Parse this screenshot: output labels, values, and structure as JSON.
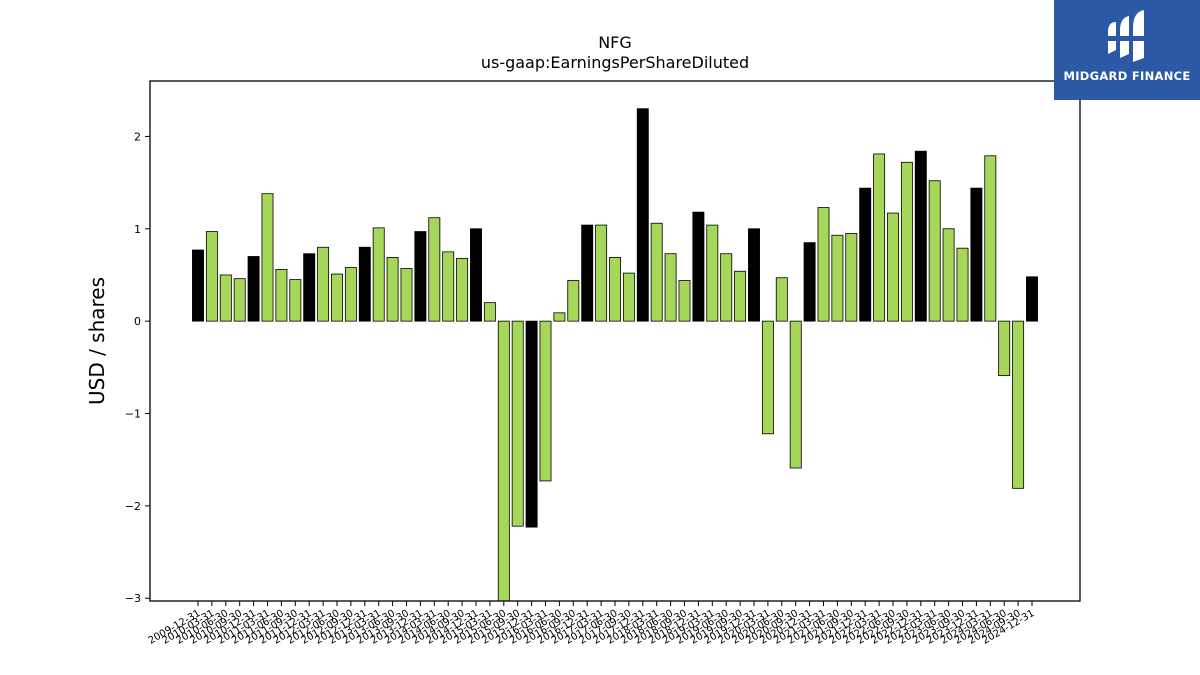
{
  "chart_data": {
    "type": "bar",
    "title": "NFG",
    "subtitle": "us-gaap:EarningsPerShareDiluted",
    "ylabel": "USD / shares",
    "xlabel": "",
    "ylim": [
      -3.03,
      2.6
    ],
    "yticks": [
      -3,
      -2,
      -1,
      0,
      1,
      2
    ],
    "grid": false,
    "colors": {
      "annual": "#000000",
      "quarterly": "#a6d65a",
      "edge": "#000000"
    },
    "categories": [
      "2009-12-31",
      "2010-03-31",
      "2010-06-30",
      "2010-09-30",
      "2010-12-31",
      "2011-03-31",
      "2011-06-30",
      "2011-09-30",
      "2011-12-31",
      "2012-03-31",
      "2012-06-30",
      "2012-09-30",
      "2012-12-31",
      "2013-03-31",
      "2013-06-30",
      "2013-09-30",
      "2013-12-31",
      "2014-03-31",
      "2014-06-30",
      "2014-09-30",
      "2014-12-31",
      "2015-03-31",
      "2015-06-30",
      "2015-09-30",
      "2015-12-31",
      "2016-03-31",
      "2016-06-30",
      "2016-09-30",
      "2016-12-31",
      "2017-03-31",
      "2017-06-30",
      "2017-09-30",
      "2017-12-31",
      "2018-03-31",
      "2018-06-30",
      "2018-09-30",
      "2018-12-31",
      "2019-03-31",
      "2019-06-30",
      "2019-09-30",
      "2019-12-31",
      "2020-03-31",
      "2020-06-30",
      "2020-09-30",
      "2020-12-31",
      "2021-03-31",
      "2021-06-30",
      "2021-09-30",
      "2021-12-31",
      "2022-03-31",
      "2022-06-30",
      "2022-09-30",
      "2022-12-31",
      "2023-03-31",
      "2023-06-30",
      "2023-09-30",
      "2023-12-31",
      "2024-03-31",
      "2024-06-30",
      "2024-09-30",
      "2024-12-31"
    ],
    "tick_labels": [
      "2009-12-31",
      "2010-03-31",
      "2010-06-30",
      "2010-09-30",
      "2010-12-31",
      "2011-03-31",
      "2011-06-30",
      "2011-09-30",
      "2011-12-31",
      "2012-03-31",
      "2012-06-30",
      "2012-09-30",
      "2012-12-31",
      "2013-03-31",
      "2013-06-30",
      "2013-09-30",
      "2013-12-31",
      "2014-03-31",
      "2014-06-30",
      "2014-09-30",
      "2014-12-31",
      "2015-03-31",
      "2015-06-30",
      "2015-09-30",
      "2015-12-31",
      "2016-03-31",
      "2016-06-30",
      "2016-09-30",
      "2016-12-31",
      "2017-03-31",
      "2017-06-30",
      "2017-09-30",
      "2017-12-31",
      "2018-03-31",
      "2018-06-30",
      "2018-09-30",
      "2018-12-31",
      "2019-03-31",
      "2019-06-30",
      "2019-09-30",
      "2019-12-31",
      "2020-03-31",
      "2020-06-30",
      "2020-09-30",
      "2020-12-31",
      "2021-03-31",
      "2021-06-30",
      "2021-09-30",
      "2021-12-31",
      "2022-03-31",
      "2022-06-30",
      "2022-09-30",
      "2022-12-31",
      "2023-03-31",
      "2023-06-30",
      "2023-09-30",
      "2023-12-31",
      "2024-03-31",
      "2024-06-30",
      "2024-09-30",
      "2024-12-31"
    ],
    "values": [
      0.77,
      0.97,
      0.5,
      0.46,
      0.7,
      1.38,
      0.56,
      0.45,
      0.73,
      0.8,
      0.51,
      0.58,
      0.8,
      1.01,
      0.69,
      0.57,
      0.97,
      1.12,
      0.75,
      0.68,
      1.0,
      0.2,
      -3.03,
      -2.22,
      -2.23,
      -1.73,
      0.09,
      0.44,
      1.04,
      1.04,
      0.69,
      0.52,
      2.3,
      1.06,
      0.73,
      0.44,
      1.18,
      1.04,
      0.73,
      0.54,
      1.0,
      -1.22,
      0.47,
      -1.59,
      0.85,
      1.23,
      0.93,
      0.95,
      1.44,
      1.81,
      1.17,
      1.72,
      1.84,
      1.52,
      1.0,
      0.79,
      1.44,
      1.79,
      -0.59,
      -1.81,
      0.48
    ],
    "bar_kind": [
      "annual",
      "quarterly",
      "quarterly",
      "quarterly",
      "annual",
      "quarterly",
      "quarterly",
      "quarterly",
      "annual",
      "quarterly",
      "quarterly",
      "quarterly",
      "annual",
      "quarterly",
      "quarterly",
      "quarterly",
      "annual",
      "quarterly",
      "quarterly",
      "quarterly",
      "annual",
      "quarterly",
      "quarterly",
      "quarterly",
      "annual",
      "quarterly",
      "quarterly",
      "quarterly",
      "annual",
      "quarterly",
      "quarterly",
      "quarterly",
      "annual",
      "quarterly",
      "quarterly",
      "quarterly",
      "annual",
      "quarterly",
      "quarterly",
      "quarterly",
      "annual",
      "quarterly",
      "quarterly",
      "quarterly",
      "annual",
      "quarterly",
      "quarterly",
      "quarterly",
      "annual",
      "quarterly",
      "quarterly",
      "quarterly",
      "annual",
      "quarterly",
      "quarterly",
      "quarterly",
      "annual",
      "quarterly",
      "quarterly",
      "quarterly",
      "annual"
    ]
  },
  "logo": {
    "text": "MIDGARD FINANCE",
    "background": "#2b59a6"
  }
}
